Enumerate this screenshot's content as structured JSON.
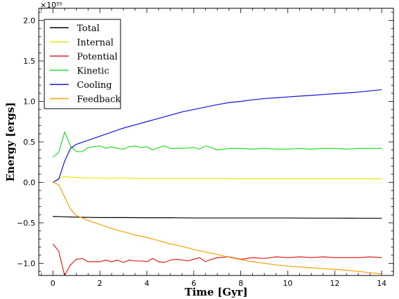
{
  "chart_data": {
    "type": "line",
    "title": "",
    "xlabel": "Time [Gyr]",
    "ylabel": "Energy [ergs]",
    "xlim": [
      -0.6,
      14.5
    ],
    "ylim": [
      -1.15,
      2.15
    ],
    "x_ticks": [
      0,
      2,
      4,
      6,
      8,
      10,
      12,
      14
    ],
    "y_ticks": [
      -1.0,
      -0.5,
      0.0,
      0.5,
      1.0,
      1.5,
      2.0
    ],
    "y_tick_labels": [
      "−1.0",
      "−0.5",
      "0.0",
      "0.5",
      "1.0",
      "1.5",
      "2.0"
    ],
    "y_offset_text": "×10⁵⁵",
    "legend_location": "top-left",
    "grid": false,
    "series": [
      {
        "name": "Total",
        "color": "#000000",
        "x": [
          0,
          0.5,
          1,
          2,
          3,
          4,
          5,
          6,
          7,
          8,
          9,
          10,
          11,
          12,
          13,
          14
        ],
        "values": [
          -0.42,
          -0.425,
          -0.43,
          -0.435,
          -0.435,
          -0.437,
          -0.437,
          -0.44,
          -0.44,
          -0.44,
          -0.44,
          -0.44,
          -0.442,
          -0.442,
          -0.443,
          -0.443
        ]
      },
      {
        "name": "Internal",
        "color": "#e8e800",
        "x": [
          0,
          0.25,
          0.5,
          1,
          1.5,
          2,
          2.5,
          3,
          3.5,
          4,
          5,
          6,
          7,
          8,
          9,
          10,
          11,
          12,
          13,
          14
        ],
        "values": [
          0.0,
          0.05,
          0.07,
          0.06,
          0.055,
          0.055,
          0.05,
          0.055,
          0.05,
          0.05,
          0.05,
          0.05,
          0.05,
          0.045,
          0.045,
          0.045,
          0.045,
          0.045,
          0.045,
          0.045
        ]
      },
      {
        "name": "Potential",
        "color": "#e02020",
        "x": [
          0,
          0.25,
          0.5,
          0.75,
          1,
          1.25,
          1.5,
          1.75,
          2,
          2.25,
          2.5,
          2.75,
          3,
          3.25,
          3.5,
          3.75,
          4,
          4.25,
          4.5,
          4.75,
          5,
          5.25,
          5.5,
          5.75,
          6,
          6.25,
          6.5,
          6.75,
          7,
          7.5,
          8,
          8.5,
          9,
          9.5,
          10,
          10.5,
          11,
          11.5,
          12,
          12.5,
          13,
          13.5,
          14
        ],
        "values": [
          -0.76,
          -0.85,
          -1.15,
          -1.02,
          -0.95,
          -0.94,
          -0.98,
          -0.98,
          -0.98,
          -0.96,
          -0.98,
          -0.96,
          -0.99,
          -0.96,
          -0.97,
          -0.97,
          -0.98,
          -0.94,
          -0.98,
          -0.99,
          -0.96,
          -0.95,
          -0.96,
          -0.97,
          -0.95,
          -0.93,
          -0.98,
          -0.95,
          -0.93,
          -0.92,
          -0.95,
          -0.93,
          -0.94,
          -0.92,
          -0.93,
          -0.92,
          -0.93,
          -0.92,
          -0.93,
          -0.93,
          -0.93,
          -0.92,
          -0.93
        ]
      },
      {
        "name": "Kinetic",
        "color": "#20e020",
        "x": [
          0,
          0.25,
          0.5,
          0.75,
          1,
          1.25,
          1.5,
          1.75,
          2,
          2.25,
          2.5,
          2.75,
          3,
          3.25,
          3.5,
          3.75,
          4,
          4.25,
          4.5,
          4.75,
          5,
          5.5,
          6,
          6.25,
          6.5,
          6.75,
          7,
          7.5,
          8,
          8.5,
          9,
          9.5,
          10,
          10.5,
          11,
          11.5,
          12,
          12.5,
          13,
          13.5,
          14
        ],
        "values": [
          0.31,
          0.37,
          0.62,
          0.45,
          0.38,
          0.38,
          0.43,
          0.44,
          0.45,
          0.42,
          0.44,
          0.42,
          0.41,
          0.44,
          0.45,
          0.43,
          0.44,
          0.4,
          0.43,
          0.45,
          0.42,
          0.42,
          0.43,
          0.41,
          0.45,
          0.43,
          0.4,
          0.42,
          0.42,
          0.41,
          0.42,
          0.41,
          0.41,
          0.42,
          0.41,
          0.42,
          0.42,
          0.41,
          0.42,
          0.42,
          0.42
        ]
      },
      {
        "name": "Cooling",
        "color": "#1010e0",
        "x": [
          0,
          0.25,
          0.5,
          0.75,
          1,
          1.5,
          2,
          2.5,
          3,
          3.5,
          4,
          4.5,
          5,
          5.5,
          6,
          6.5,
          7,
          7.5,
          8,
          8.5,
          9,
          9.5,
          10,
          10.5,
          11,
          11.5,
          12,
          12.5,
          13,
          13.5,
          14
        ],
        "values": [
          0.0,
          0.04,
          0.26,
          0.42,
          0.47,
          0.52,
          0.57,
          0.62,
          0.67,
          0.71,
          0.75,
          0.79,
          0.83,
          0.87,
          0.9,
          0.93,
          0.96,
          0.985,
          1.0,
          1.02,
          1.035,
          1.045,
          1.055,
          1.065,
          1.075,
          1.085,
          1.095,
          1.105,
          1.115,
          1.13,
          1.145
        ]
      },
      {
        "name": "Feedback",
        "color": "#f5a000",
        "x": [
          0,
          0.25,
          0.5,
          0.75,
          1,
          1.5,
          2,
          2.5,
          3,
          3.5,
          4,
          4.5,
          5,
          5.5,
          6,
          6.5,
          7,
          7.5,
          8,
          8.5,
          9,
          9.5,
          10,
          10.5,
          11,
          11.5,
          12,
          12.5,
          13,
          13.5,
          14
        ],
        "values": [
          0.0,
          -0.03,
          -0.18,
          -0.33,
          -0.41,
          -0.47,
          -0.52,
          -0.57,
          -0.61,
          -0.65,
          -0.68,
          -0.72,
          -0.76,
          -0.79,
          -0.83,
          -0.86,
          -0.89,
          -0.925,
          -0.955,
          -0.98,
          -1.0,
          -1.02,
          -1.035,
          -1.045,
          -1.055,
          -1.065,
          -1.075,
          -1.085,
          -1.1,
          -1.115,
          -1.13
        ]
      }
    ]
  }
}
